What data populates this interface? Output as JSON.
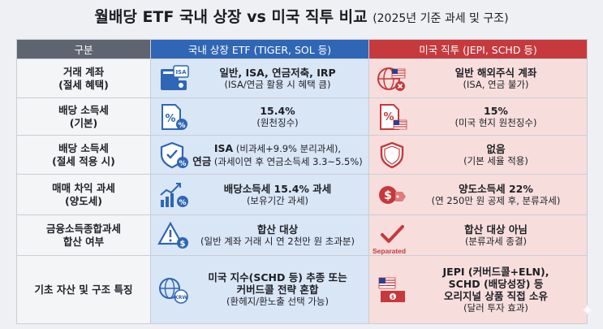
{
  "title": {
    "main": "월배당 ETF 국내 상장 vs 미국 직투 비교",
    "sub": "(2025년 기준 과세 및 구조)"
  },
  "headers": {
    "category": "구분",
    "domestic": "국내 상장 ETF (TIGER, SOL 등)",
    "us": "미국 직투 (JEPI, SCHD 등)"
  },
  "rows": [
    {
      "label1": "거래 계좌",
      "label2": "(절세 혜택)",
      "domestic": {
        "line1": "일반, ISA, 연금저축, IRP",
        "line2": "(ISA/연금 활용 시 혜택 큼)",
        "icon": "account-book-isa-icon"
      },
      "us": {
        "line1": "일반 해외주식 계좌",
        "line2": "(ISA, 연금 불가)",
        "icon": "globe-us-flag-icon"
      }
    },
    {
      "label1": "배당 소득세",
      "label2": "(기본)",
      "domestic": {
        "line1": "15.4%",
        "line2": "(원천징수)",
        "icon": "percent-document-icon"
      },
      "us": {
        "line1": "15%",
        "line2": "(미국 현지 원천징수)",
        "icon": "percent-document-us-flag-icon"
      }
    },
    {
      "label1": "배당 소득세",
      "label2": "(절세 적용 시)",
      "domestic": {
        "line1a": "ISA",
        "line1b": " (비과세+9.9% 분리과세),",
        "line2a": "연금",
        "line2b": " (과세이연 후 연금소득세 3.3~5.5%)",
        "icon": "shield-percent-icon"
      },
      "us": {
        "line1": "없음",
        "line2": "(기본 세율 적용)",
        "icon": "shield-icon"
      }
    },
    {
      "label1": "매매 차익 과세",
      "label2": "(양도세)",
      "domestic": {
        "line1": "배당소득세 15.4% 과세",
        "line2": "(보유기간 과세)",
        "icon": "rising-chart-percent-icon"
      },
      "us": {
        "line1": "양도소득세 22%",
        "line2": "(연 250만 원 공제 후, 분류과세)",
        "icon": "dollar-tag-icon"
      }
    },
    {
      "label1": "금융소득종합과세",
      "label2": "합산 여부",
      "domestic": {
        "line1": "합산 대상",
        "line2": "(일반 계좌 거래 시 연 2천만 원 초과분)",
        "icon": "warning-money-icon"
      },
      "us": {
        "line1": "합산 대상 아님",
        "line2": "(분류과세 종결)",
        "icon": "check-separated-icon",
        "icon_label": "Separated"
      }
    },
    {
      "label1": "기초 자산 및 구조 특징",
      "domestic": {
        "line1": "미국 지수(SCHD 등) 추종 또는",
        "line2": "커버드콜 전략 혼합",
        "line3": "(환헤지/환노출 선택 가능)",
        "icon": "globe-krw-icon"
      },
      "us": {
        "line1": "JEPI (커버드콜+ELN),",
        "line2": "SCHD (배당성장) 등",
        "line3": "오리지널 상품 직접 소유",
        "line4": "(달러 투자 효과)",
        "icon": "us-dollar-bills-icon"
      }
    }
  ],
  "colors": {
    "header_category": "#5e6470",
    "header_domestic": "#2f66b5",
    "header_us": "#c6393c",
    "domestic_bg": "#d9e6f6",
    "us_bg": "#f7dedd"
  }
}
